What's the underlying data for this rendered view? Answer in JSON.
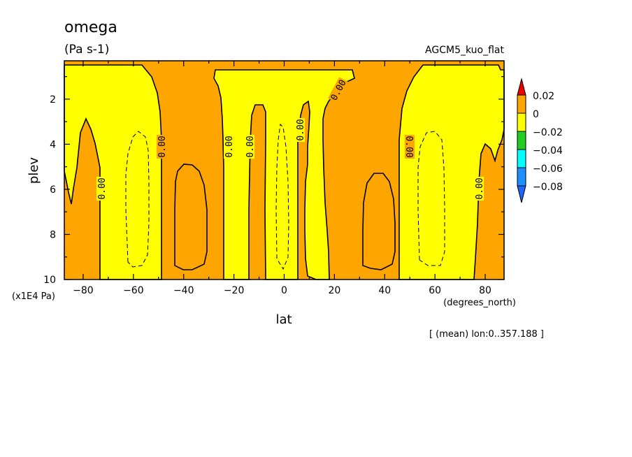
{
  "title": "omega",
  "units": "(Pa s-1)",
  "experiment": "AGCM5_kuo_flat",
  "chart_data": {
    "type": "heatmap",
    "subtype": "filled-contour",
    "xlabel": "lat",
    "ylabel": "plev",
    "x_unit": "(degrees_north)",
    "y_scale_note": "(x1E4 Pa)",
    "xlim": [
      -87.5,
      87.5
    ],
    "ylim": [
      10,
      0.3
    ],
    "x_ticks": [
      -80,
      -60,
      -40,
      -20,
      0,
      20,
      40,
      60,
      80
    ],
    "y_ticks": [
      2,
      4,
      6,
      8,
      10
    ],
    "contour_label": "0.00",
    "colorbar": {
      "levels": [
        "0.02",
        "0",
        "−0.02",
        "−0.04",
        "−0.06",
        "−0.08"
      ],
      "colors": [
        "#ee0000",
        "#ffa500",
        "#ffff00",
        "#22cc22",
        "#00ffff",
        "#1e8fff",
        "#1e64ff"
      ]
    },
    "regions": [
      {
        "sign": "negative",
        "color": "#ffff00",
        "lat_range": [
          -87.5,
          -52
        ],
        "plev_range": [
          0.3,
          10
        ]
      },
      {
        "sign": "positive",
        "color": "#ffa500",
        "lat_range": [
          -52,
          -25
        ],
        "plev_range": [
          0.3,
          10
        ]
      },
      {
        "sign": "negative",
        "color": "#ffff00",
        "lat_range": [
          -25,
          -10
        ],
        "plev_range": [
          0.3,
          10
        ]
      },
      {
        "sign": "negative",
        "color": "#ffff00",
        "lat_range": [
          -9,
          5
        ],
        "plev_range": [
          0.3,
          10
        ]
      },
      {
        "sign": "negative",
        "color": "#ffff00",
        "lat_range": [
          9,
          23
        ],
        "plev_range": [
          0.3,
          10
        ]
      },
      {
        "sign": "positive",
        "color": "#ffa500",
        "lat_range": [
          23,
          52
        ],
        "plev_range": [
          0.3,
          10
        ]
      },
      {
        "sign": "negative",
        "color": "#ffff00",
        "lat_range": [
          52,
          87.5
        ],
        "plev_range": [
          0.3,
          10
        ]
      }
    ]
  },
  "annotation": "[ (mean) lon:0..357.188 ]"
}
